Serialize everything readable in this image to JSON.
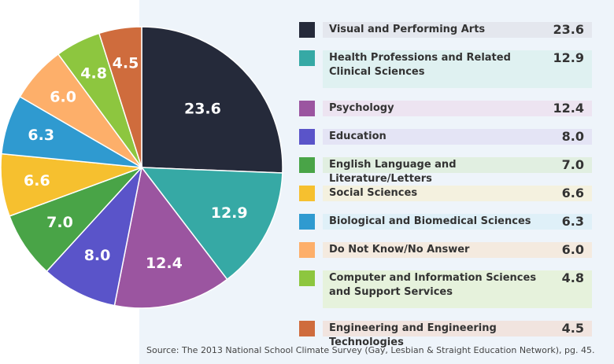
{
  "chart_data": {
    "type": "pie",
    "title": "",
    "categories": [
      "Visual and Performing Arts",
      "Health Professions and Related Clinical Sciences",
      "Psychology",
      "Education",
      "English Language and Literature/Letters",
      "Social Sciences",
      "Biological and Biomedical Sciences",
      "Do Not Know/No Answer",
      "Computer and Information Sciences and Support Services",
      "Engineering and Engineering Technologies"
    ],
    "values": [
      23.6,
      12.9,
      12.4,
      8.0,
      7.0,
      6.6,
      6.3,
      6.0,
      4.8,
      4.5
    ],
    "value_labels": [
      "23.6",
      "12.9",
      "12.4",
      "8.0",
      "7.0",
      "6.6",
      "6.3",
      "6.0",
      "4.8",
      "4.5"
    ],
    "colors": [
      "#252a3a",
      "#36a9a5",
      "#9b55a0",
      "#5a54c9",
      "#49a447",
      "#f6c02f",
      "#2f9ad0",
      "#fdaf6a",
      "#8dc63f",
      "#cf6c3d"
    ],
    "bar_colors": [
      "#e4e7ee",
      "#dff1f1",
      "#ede4f1",
      "#e4e4f5",
      "#e1efe1",
      "#f4f1df",
      "#dff0f8",
      "#f4eadf",
      "#e6f2dc",
      "#f1e4df"
    ],
    "legend_placement": "right"
  },
  "source": "Source: The 2013 National School Climate Survey (Gay, Lesbian & Straight Education Network), pg. 45."
}
